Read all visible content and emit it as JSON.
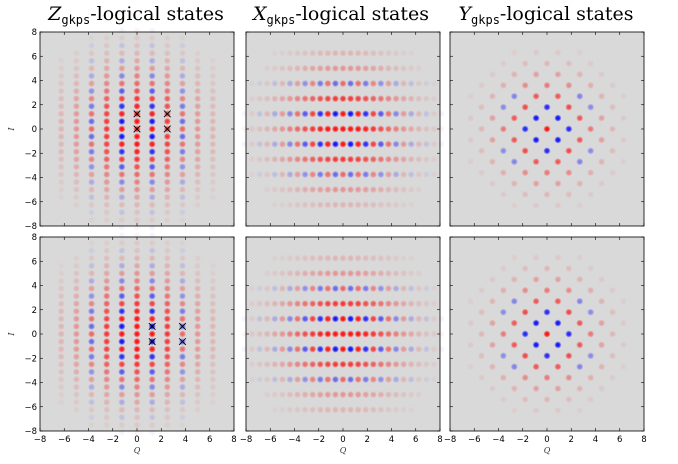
{
  "chart_data": {
    "type": "heatmap",
    "column_titles": [
      {
        "main": "Z",
        "sub": "gkps",
        "rest": "-logical states"
      },
      {
        "main": "X",
        "sub": "gkps",
        "rest": "-logical states"
      },
      {
        "main": "Y",
        "sub": "gkps",
        "rest": "-logical states"
      }
    ],
    "xlabel": "Q",
    "ylabel": "I",
    "xlim": [
      -8,
      8
    ],
    "ylim": [
      -8,
      8
    ],
    "xticks": [
      -8,
      -6,
      -4,
      -2,
      0,
      2,
      4,
      6,
      8
    ],
    "yticks": [
      -8,
      -6,
      -4,
      -2,
      0,
      2,
      4,
      6,
      8
    ],
    "colors": {
      "background": "#d9d9d9",
      "positive": "#ff0000",
      "negative": "#0000ff",
      "marker": "#000000"
    },
    "panels": [
      {
        "row": 0,
        "col": 0,
        "pattern": "z",
        "markers": [
          [
            0,
            0
          ],
          [
            0,
            1.25
          ],
          [
            2.5,
            0
          ],
          [
            2.5,
            1.25
          ]
        ]
      },
      {
        "row": 0,
        "col": 1,
        "pattern": "x",
        "markers": []
      },
      {
        "row": 0,
        "col": 2,
        "pattern": "y",
        "markers": []
      },
      {
        "row": 1,
        "col": 0,
        "pattern": "z",
        "markers": [
          [
            1.25,
            -0.625
          ],
          [
            1.25,
            0.625
          ],
          [
            3.75,
            -0.625
          ],
          [
            3.75,
            0.625
          ]
        ]
      },
      {
        "row": 1,
        "col": 1,
        "pattern": "x",
        "markers": []
      },
      {
        "row": 1,
        "col": 2,
        "pattern": "y",
        "markers": []
      }
    ]
  }
}
